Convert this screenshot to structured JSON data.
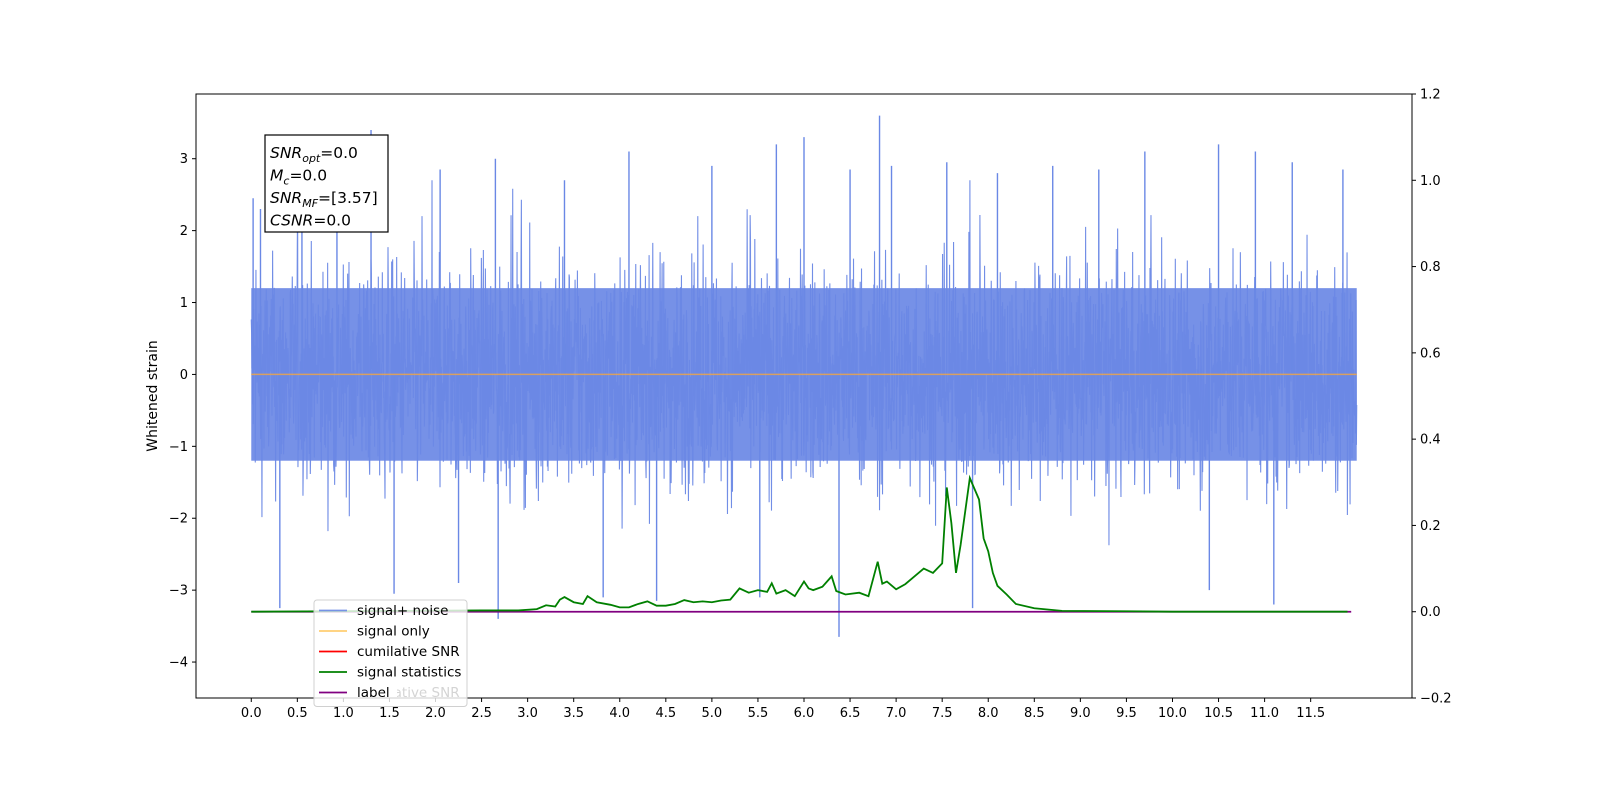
{
  "chart_data": {
    "type": "line",
    "xlabel": "",
    "ylabel": "Whitened strain",
    "xlim": [
      -0.6,
      12.6
    ],
    "ylim": [
      -4.5,
      3.9
    ],
    "xticks": [
      "0.0",
      "0.5",
      "1.0",
      "1.5",
      "2.0",
      "2.5",
      "3.0",
      "3.5",
      "4.0",
      "4.5",
      "5.0",
      "5.5",
      "6.0",
      "6.5",
      "7.0",
      "7.5",
      "8.0",
      "8.5",
      "9.0",
      "9.5",
      "10.0",
      "10.5",
      "11.0",
      "11.5"
    ],
    "yticks": [
      3,
      2,
      1,
      0,
      -1,
      -2,
      -3,
      -4
    ],
    "ytick_labels": [
      "3",
      "2",
      "1",
      "0",
      "−1",
      "−2",
      "−3",
      "−4"
    ],
    "y2lim": [
      -0.2,
      1.2
    ],
    "y2ticks": [
      1.2,
      1.0,
      0.8,
      0.6,
      0.4,
      0.2,
      0.0,
      -0.2
    ],
    "y2tick_labels": [
      "1.2",
      "1.0",
      "0.8",
      "0.6",
      "0.4",
      "0.2",
      "0.0",
      "−0.2"
    ],
    "noise": {
      "x_range": [
        0.0,
        12.0
      ],
      "core_envelope": 1.2,
      "spikes": [
        {
          "x": 0.02,
          "y": 2.45
        },
        {
          "x": 0.1,
          "y": 2.3
        },
        {
          "x": 0.31,
          "y": -3.25
        },
        {
          "x": 0.55,
          "y": 2.65
        },
        {
          "x": 0.93,
          "y": 2.95
        },
        {
          "x": 1.3,
          "y": 3.4
        },
        {
          "x": 1.55,
          "y": -3.05
        },
        {
          "x": 2.05,
          "y": 2.85
        },
        {
          "x": 2.25,
          "y": -2.9
        },
        {
          "x": 2.65,
          "y": 3.0
        },
        {
          "x": 2.68,
          "y": -3.4
        },
        {
          "x": 3.4,
          "y": 2.7
        },
        {
          "x": 3.82,
          "y": -3.1
        },
        {
          "x": 4.1,
          "y": 3.1
        },
        {
          "x": 4.4,
          "y": -3.15
        },
        {
          "x": 5.0,
          "y": 2.9
        },
        {
          "x": 5.52,
          "y": -3.1
        },
        {
          "x": 5.7,
          "y": 3.2
        },
        {
          "x": 6.0,
          "y": 3.3
        },
        {
          "x": 6.38,
          "y": -3.65
        },
        {
          "x": 6.5,
          "y": 2.85
        },
        {
          "x": 6.82,
          "y": 3.6
        },
        {
          "x": 6.95,
          "y": 2.9
        },
        {
          "x": 7.55,
          "y": 2.95
        },
        {
          "x": 7.83,
          "y": -3.25
        },
        {
          "x": 8.1,
          "y": 2.8
        },
        {
          "x": 8.7,
          "y": 2.9
        },
        {
          "x": 9.2,
          "y": 2.85
        },
        {
          "x": 9.7,
          "y": 3.1
        },
        {
          "x": 10.4,
          "y": -3.0
        },
        {
          "x": 10.5,
          "y": 3.2
        },
        {
          "x": 10.9,
          "y": 3.1
        },
        {
          "x": 11.1,
          "y": -3.2
        },
        {
          "x": 11.3,
          "y": 2.95
        },
        {
          "x": 11.85,
          "y": 2.85
        }
      ]
    },
    "signal_only": {
      "x": [
        0.0,
        12.0
      ],
      "y": [
        0.0,
        0.0
      ]
    },
    "cumulative_snr": {
      "x": [
        0.0,
        11.94
      ],
      "y": [
        0.0,
        0.0
      ]
    },
    "label_line": {
      "x": [
        0.0,
        11.94
      ],
      "y": [
        0.0,
        0.0
      ]
    },
    "signal_statistics": {
      "x": [
        0.0,
        2.5,
        2.9,
        3.1,
        3.2,
        3.3,
        3.35,
        3.4,
        3.5,
        3.6,
        3.65,
        3.75,
        3.9,
        4.0,
        4.1,
        4.2,
        4.3,
        4.4,
        4.5,
        4.6,
        4.7,
        4.8,
        4.9,
        5.0,
        5.1,
        5.2,
        5.3,
        5.4,
        5.5,
        5.6,
        5.65,
        5.7,
        5.8,
        5.9,
        6.0,
        6.05,
        6.1,
        6.2,
        6.3,
        6.35,
        6.45,
        6.6,
        6.7,
        6.8,
        6.85,
        6.9,
        7.0,
        7.1,
        7.2,
        7.3,
        7.4,
        7.5,
        7.55,
        7.6,
        7.65,
        7.7,
        7.8,
        7.9,
        7.95,
        8.0,
        8.05,
        8.1,
        8.2,
        8.3,
        8.5,
        8.8,
        9.5,
        10.0,
        11.9
      ],
      "y": [
        0.0,
        0.003,
        0.003,
        0.006,
        0.015,
        0.012,
        0.028,
        0.034,
        0.022,
        0.018,
        0.036,
        0.022,
        0.016,
        0.01,
        0.01,
        0.018,
        0.024,
        0.014,
        0.014,
        0.018,
        0.027,
        0.022,
        0.024,
        0.022,
        0.026,
        0.028,
        0.054,
        0.044,
        0.05,
        0.046,
        0.066,
        0.042,
        0.05,
        0.036,
        0.07,
        0.054,
        0.05,
        0.058,
        0.082,
        0.048,
        0.04,
        0.044,
        0.036,
        0.116,
        0.065,
        0.07,
        0.052,
        0.064,
        0.082,
        0.1,
        0.09,
        0.112,
        0.288,
        0.205,
        0.09,
        0.155,
        0.31,
        0.26,
        0.17,
        0.14,
        0.09,
        0.06,
        0.04,
        0.018,
        0.008,
        0.002,
        0.001,
        0.0,
        0.0
      ]
    },
    "annotation": {
      "lines": [
        {
          "sym": "SNR",
          "sub": "opt",
          "rest": "=0.0"
        },
        {
          "sym": "M",
          "sub": "c",
          "rest": "=0.0"
        },
        {
          "sym": "SNR",
          "sub": "MF",
          "rest": "=[3.57]"
        },
        {
          "sym": "CSNR",
          "sub": "",
          "rest": "=0.0"
        }
      ]
    },
    "legend": {
      "placement": "lower-left",
      "entries": [
        {
          "label": "signal+ noise",
          "color": "#6a88e5",
          "alpha": 0.9
        },
        {
          "label": "signal only",
          "color": "#ffa500",
          "alpha": 0.55
        },
        {
          "label": "cumilative SNR",
          "color": "#ff0000",
          "alpha": 1.0
        },
        {
          "label": "signal statistics",
          "color": "#008000",
          "alpha": 1.0
        },
        {
          "label": "label",
          "color": "#800080",
          "alpha": 1.0
        }
      ],
      "hidden_label": "cumilative SNR"
    },
    "colors": {
      "noise": "#6a88e5",
      "signal_only": "#f4a640",
      "signal_statistics": "#008000",
      "label_line": "#800080",
      "cumulative": "#ff0000"
    }
  }
}
